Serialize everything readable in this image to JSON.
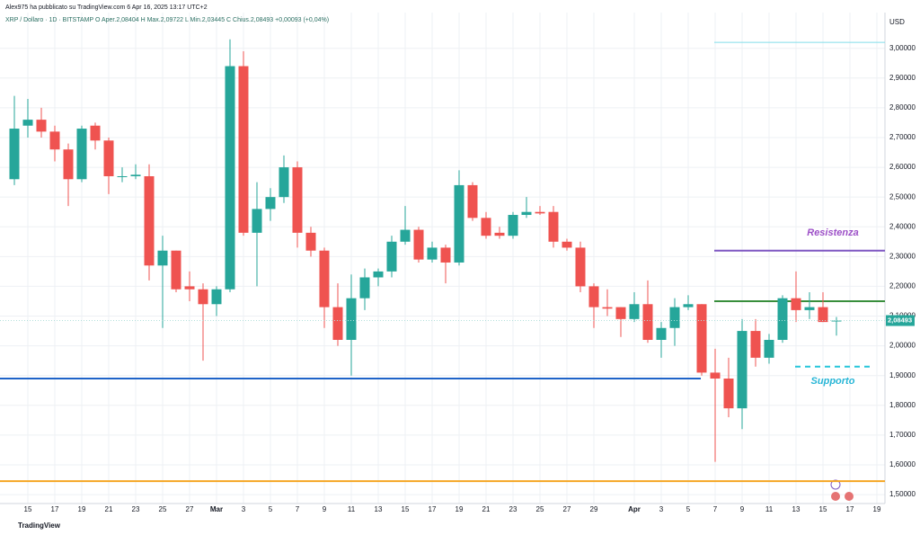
{
  "chart_data": {
    "type": "candlestick",
    "header": "Alex975 ha pubblicato su TradingView.com 6 Apr 16, 2025 13:17 UTC+2",
    "subtitle": "XRP / Dollaro · 1D · BITSTAMP  O Aper.2,08404  H Max.2,09722  L Min.2,03445  C Chius.2,08493  +0,00093 (+0,04%)",
    "currency": "USD",
    "footer": "TradingView",
    "up_color": "#26a69a",
    "down_color": "#ef5350",
    "categories": [
      null,
      "15",
      null,
      "17",
      null,
      "19",
      null,
      "21",
      null,
      "23",
      null,
      "25",
      null,
      "27",
      null,
      "Mar",
      null,
      "3",
      null,
      "5",
      null,
      "7",
      null,
      "9",
      null,
      "11",
      null,
      "13",
      null,
      "15",
      null,
      "17",
      null,
      "19",
      null,
      "21",
      null,
      "23",
      null,
      "25",
      null,
      "27",
      null,
      "29",
      null,
      null,
      "Apr",
      null,
      "3",
      null,
      "5",
      null,
      "7",
      null,
      "9",
      null,
      "11",
      null,
      "13",
      null,
      "15",
      null,
      "17",
      null,
      "19"
    ],
    "open": [
      2.56,
      2.74,
      2.76,
      2.72,
      2.66,
      2.56,
      2.74,
      2.69,
      2.57,
      2.57,
      2.57,
      2.27,
      2.32,
      2.2,
      2.19,
      2.14,
      2.19,
      2.94,
      2.38,
      2.46,
      2.5,
      2.6,
      2.38,
      2.32,
      2.13,
      2.02,
      2.16,
      2.23,
      2.25,
      2.35,
      2.39,
      2.29,
      2.33,
      2.28,
      2.54,
      2.43,
      2.38,
      2.37,
      2.44,
      2.45,
      2.45,
      2.35,
      2.33,
      2.2,
      2.13,
      2.13,
      2.09,
      2.14,
      2.02,
      2.06,
      2.13,
      2.14,
      1.91,
      1.89,
      1.79,
      2.05,
      1.96,
      2.02,
      2.16,
      2.12,
      2.13,
      2.08404,
      null,
      null,
      null
    ],
    "high": [
      2.84,
      2.83,
      2.8,
      2.74,
      2.68,
      2.74,
      2.75,
      2.7,
      2.6,
      2.61,
      2.61,
      2.37,
      2.32,
      2.25,
      2.21,
      2.2,
      3.03,
      2.99,
      2.55,
      2.53,
      2.64,
      2.62,
      2.4,
      2.33,
      2.21,
      2.24,
      2.26,
      2.26,
      2.37,
      2.47,
      2.4,
      2.35,
      2.34,
      2.59,
      2.55,
      2.45,
      2.4,
      2.45,
      2.5,
      2.47,
      2.47,
      2.36,
      2.35,
      2.21,
      2.19,
      2.13,
      2.18,
      2.22,
      2.08,
      2.16,
      2.17,
      2.14,
      1.99,
      1.96,
      2.09,
      2.09,
      2.04,
      2.17,
      2.25,
      2.18,
      2.18,
      2.09722,
      null,
      null,
      null
    ],
    "low": [
      2.54,
      2.7,
      2.7,
      2.62,
      2.47,
      2.55,
      2.66,
      2.51,
      2.55,
      2.56,
      2.22,
      2.06,
      2.18,
      2.15,
      1.95,
      2.1,
      2.18,
      2.37,
      2.2,
      2.42,
      2.48,
      2.33,
      2.3,
      2.06,
      2.0,
      1.9,
      2.12,
      2.2,
      2.23,
      2.34,
      2.28,
      2.28,
      2.21,
      2.27,
      2.42,
      2.36,
      2.36,
      2.36,
      2.43,
      2.44,
      2.33,
      2.32,
      2.18,
      2.06,
      2.1,
      2.03,
      2.08,
      2.01,
      1.96,
      2.0,
      2.12,
      1.9,
      1.61,
      1.76,
      1.72,
      1.93,
      1.94,
      2.01,
      2.08,
      2.09,
      2.08,
      2.03445,
      null,
      null,
      null
    ],
    "close": [
      2.73,
      2.76,
      2.72,
      2.66,
      2.56,
      2.73,
      2.69,
      2.57,
      2.57,
      2.575,
      2.27,
      2.32,
      2.19,
      2.19,
      2.14,
      2.19,
      2.94,
      2.38,
      2.46,
      2.5,
      2.6,
      2.38,
      2.32,
      2.13,
      2.02,
      2.16,
      2.23,
      2.25,
      2.35,
      2.39,
      2.29,
      2.33,
      2.28,
      2.54,
      2.43,
      2.37,
      2.37,
      2.44,
      2.45,
      2.445,
      2.35,
      2.33,
      2.2,
      2.13,
      2.125,
      2.09,
      2.14,
      2.02,
      2.06,
      2.13,
      2.14,
      1.91,
      1.89,
      1.79,
      2.05,
      1.96,
      2.02,
      2.16,
      2.12,
      2.13,
      2.08,
      2.08493,
      null,
      null,
      null
    ],
    "ylim": [
      1.47,
      3.12
    ],
    "yticks": [
      {
        "value": 1.5,
        "label": "1,50000"
      },
      {
        "value": 1.6,
        "label": "1,60000"
      },
      {
        "value": 1.7,
        "label": "1,70000"
      },
      {
        "value": 1.8,
        "label": "1,80000"
      },
      {
        "value": 1.9,
        "label": "1,90000"
      },
      {
        "value": 2.0,
        "label": "2,00000"
      },
      {
        "value": 2.1,
        "label": "2,10000"
      },
      {
        "value": 2.2,
        "label": "2,20000"
      },
      {
        "value": 2.3,
        "label": "2,30000"
      },
      {
        "value": 2.4,
        "label": "2,40000"
      },
      {
        "value": 2.5,
        "label": "2,50000"
      },
      {
        "value": 2.6,
        "label": "2,60000"
      },
      {
        "value": 2.7,
        "label": "2,70000"
      },
      {
        "value": 2.8,
        "label": "2,80000"
      },
      {
        "value": 2.9,
        "label": "2,90000"
      },
      {
        "value": 3.0,
        "label": "3,00000"
      }
    ],
    "last_price": {
      "value": 2.08493,
      "label": "2,08493"
    },
    "levels": [
      {
        "value": 3.02,
        "color": "#80deea",
        "dash": false
      },
      {
        "value": 2.32,
        "color": "#7e57c2",
        "dash": false
      },
      {
        "value": 2.15,
        "color": "#388e3c",
        "dash": false
      },
      {
        "value": 1.93,
        "color": "#26c6da",
        "dash": true
      },
      {
        "value": 1.89,
        "color": "#1e63c8",
        "dash": false
      },
      {
        "value": 1.545,
        "color": "#f5a623",
        "dash": false
      }
    ],
    "annotations": [
      {
        "text": "Resistenza",
        "value": 2.38,
        "color": "#9c4fc7"
      },
      {
        "text": "Supporto",
        "value": 1.88,
        "color": "#26b5d6"
      }
    ],
    "grid": true
  }
}
